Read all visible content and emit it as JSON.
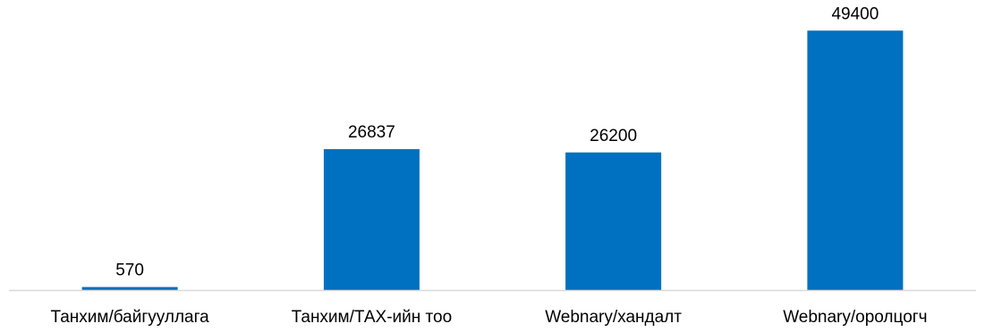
{
  "chart_data": {
    "type": "bar",
    "title": "",
    "xlabel": "",
    "ylabel": "",
    "categories": [
      "Танхим/байгууллага",
      "Танхим/ТАХ-ийн тоо",
      "Webnary/хандалт",
      "Webnary/оролцогч"
    ],
    "values": [
      570,
      26837,
      26200,
      49400
    ],
    "data_labels": [
      "570",
      "26837",
      "26200",
      "49400"
    ],
    "ylim": [
      0,
      52000
    ],
    "grid": false,
    "legend": "none",
    "bar_color": "#0070C0",
    "axis_color": "#D9D9D9"
  }
}
